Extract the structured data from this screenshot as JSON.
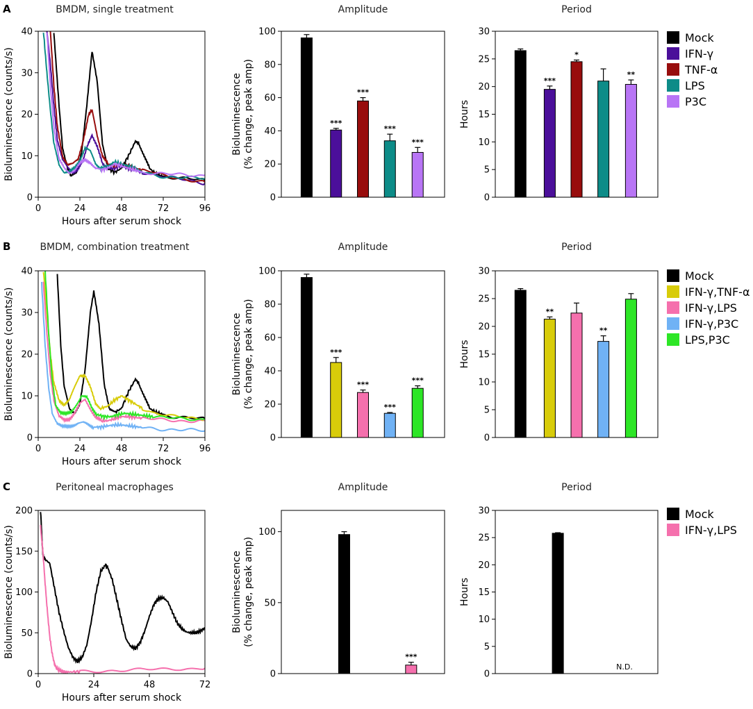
{
  "figure": {
    "row_labels": [
      "A",
      "B",
      "C"
    ],
    "trace_titles": [
      "BMDM, single treatment",
      "BMDM, combination treatment",
      "Peritoneal macrophages"
    ],
    "legends": [
      [
        {
          "label": "Mock",
          "color": "#000000"
        },
        {
          "label": "IFN-γ",
          "color": "#4b0f9a"
        },
        {
          "label": "TNF-α",
          "color": "#980d0d"
        },
        {
          "label": "LPS",
          "color": "#0d8c88"
        },
        {
          "label": "P3C",
          "color": "#b875f5"
        }
      ],
      [
        {
          "label": "Mock",
          "color": "#000000"
        },
        {
          "label": "IFN-γ,TNF-α",
          "color": "#d8cc0a"
        },
        {
          "label": "IFN-γ,LPS",
          "color": "#f570ad"
        },
        {
          "label": "IFN-γ,P3C",
          "color": "#70b2f5"
        },
        {
          "label": "LPS,P3C",
          "color": "#2de626"
        }
      ],
      [
        {
          "label": "Mock",
          "color": "#000000"
        },
        {
          "label": "IFN-γ,LPS",
          "color": "#f570ad"
        }
      ]
    ]
  },
  "chart_data": [
    {
      "id": "A-trace",
      "type": "line",
      "title": "BMDM, single treatment",
      "xlabel": "Hours after serum shock",
      "ylabel": "Bioluminescence (counts/s)",
      "xlim": [
        0,
        96
      ],
      "ylim": [
        0,
        40
      ],
      "xticks": [
        0,
        24,
        48,
        72,
        96
      ],
      "yticks": [
        0,
        10,
        20,
        30,
        40
      ],
      "series": [
        {
          "name": "Mock",
          "color": "#000000",
          "x": [
            9,
            12,
            14,
            17,
            19,
            22,
            25,
            28,
            31,
            34,
            37,
            40,
            44,
            48,
            52,
            56,
            58,
            61,
            64,
            68,
            72,
            78,
            84,
            90,
            96
          ],
          "y": [
            40,
            22,
            12,
            7,
            5,
            6,
            11,
            22,
            35,
            28,
            13,
            7,
            6,
            7,
            10,
            13.5,
            13,
            10,
            7,
            5.5,
            5,
            4.8,
            4.6,
            4.3,
            4
          ]
        },
        {
          "name": "IFN-γ",
          "color": "#4b0f9a",
          "x": [
            5,
            7,
            9,
            11,
            14,
            17,
            20,
            23,
            26,
            29,
            31,
            34,
            37,
            40,
            44,
            48,
            52,
            56,
            60,
            66,
            72,
            78,
            84,
            90,
            96
          ],
          "y": [
            40,
            32,
            22,
            14,
            9,
            7,
            6,
            7,
            9,
            13,
            15,
            12,
            8,
            7,
            7,
            7.5,
            7,
            6.5,
            6,
            5.5,
            5,
            4.6,
            4.2,
            3.8,
            3.4
          ]
        },
        {
          "name": "TNF-α",
          "color": "#980d0d",
          "x": [
            7,
            9,
            11,
            14,
            17,
            20,
            23,
            26,
            29,
            31,
            34,
            37,
            40,
            44,
            48,
            52,
            56,
            60,
            66,
            72,
            78,
            84,
            90,
            96
          ],
          "y": [
            40,
            27,
            17,
            10,
            8,
            8,
            9,
            14,
            20,
            21,
            15,
            10,
            8,
            7.5,
            8,
            7.5,
            7,
            6.5,
            6,
            5.2,
            4.8,
            4.4,
            4,
            3.6
          ]
        },
        {
          "name": "LPS",
          "color": "#0d8c88",
          "x": [
            3,
            5,
            7,
            9,
            12,
            15,
            18,
            21,
            24,
            27,
            30,
            33,
            36,
            40,
            44,
            48,
            52,
            56,
            60,
            66,
            72,
            78,
            84,
            90,
            96
          ],
          "y": [
            40,
            30,
            21,
            13,
            8,
            6,
            6,
            7,
            9,
            12,
            11,
            8,
            7,
            7.5,
            8.5,
            8,
            7.5,
            7,
            6,
            5.5,
            5,
            4.8,
            4.7,
            4.6,
            4.5
          ]
        },
        {
          "name": "P3C",
          "color": "#b875f5",
          "x": [
            5,
            7,
            9,
            12,
            15,
            18,
            21,
            24,
            27,
            30,
            33,
            36,
            40,
            44,
            48,
            52,
            56,
            60,
            66,
            72,
            78,
            84,
            90,
            96
          ],
          "y": [
            40,
            27,
            17,
            9,
            7,
            6,
            6.5,
            8,
            9,
            8.5,
            7,
            6.5,
            7,
            8,
            7.5,
            7,
            6.5,
            6,
            5.8,
            5.6,
            5.5,
            5.4,
            5.3,
            5.3
          ]
        }
      ]
    },
    {
      "id": "A-amp",
      "type": "bar",
      "title": "Amplitude",
      "ylabel": "Bioluminescence (% change, peak amp)",
      "ylim": [
        0,
        100
      ],
      "yticks": [
        0,
        20,
        40,
        60,
        80,
        100
      ],
      "categories": [
        "Mock",
        "IFN-γ",
        "TNF-α",
        "LPS",
        "P3C"
      ],
      "colors": [
        "#000000",
        "#4b0f9a",
        "#980d0d",
        "#0d8c88",
        "#b875f5"
      ],
      "values": [
        96,
        40.5,
        58,
        34,
        27
      ],
      "errors": [
        2,
        1,
        2,
        4,
        3
      ],
      "significance": [
        "",
        "***",
        "***",
        "***",
        "***"
      ]
    },
    {
      "id": "A-per",
      "type": "bar",
      "title": "Period",
      "ylabel": "Hours",
      "ylim": [
        0,
        30
      ],
      "yticks": [
        0,
        5,
        10,
        15,
        20,
        25,
        30
      ],
      "categories": [
        "Mock",
        "IFN-γ",
        "TNF-α",
        "LPS",
        "P3C"
      ],
      "colors": [
        "#000000",
        "#4b0f9a",
        "#980d0d",
        "#0d8c88",
        "#b875f5"
      ],
      "values": [
        26.5,
        19.5,
        24.5,
        21,
        20.4
      ],
      "errors": [
        0.3,
        0.6,
        0.3,
        2.2,
        0.8
      ],
      "significance": [
        "",
        "***",
        "*",
        "",
        "**"
      ]
    },
    {
      "id": "B-trace",
      "type": "line",
      "title": "BMDM, combination treatment",
      "xlabel": "Hours after serum shock",
      "ylabel": "Bioluminescence (counts/s)",
      "xlim": [
        0,
        96
      ],
      "ylim": [
        0,
        40
      ],
      "xticks": [
        0,
        24,
        48,
        72,
        96
      ],
      "yticks": [
        0,
        10,
        20,
        30,
        40
      ],
      "series": [
        {
          "name": "Mock",
          "color": "#000000",
          "x": [
            11,
            13,
            15,
            18,
            21,
            24,
            27,
            30,
            32,
            35,
            38,
            41,
            44,
            48,
            52,
            56,
            58,
            61,
            64,
            68,
            72,
            78,
            84,
            90,
            96
          ],
          "y": [
            39,
            22,
            12,
            7,
            6,
            8,
            16,
            30,
            35,
            27,
            13,
            7,
            6,
            7,
            11,
            14,
            13,
            10,
            7,
            6,
            5.5,
            5,
            4.8,
            4.6,
            4.4
          ]
        },
        {
          "name": "IFN-γ,TNF-α",
          "color": "#d8cc0a",
          "x": [
            3,
            5,
            7,
            9,
            12,
            15,
            18,
            21,
            24,
            27,
            30,
            33,
            36,
            40,
            44,
            48,
            52,
            56,
            60,
            66,
            72,
            78,
            84,
            90,
            96
          ],
          "y": [
            40,
            30,
            20,
            13,
            9,
            8,
            9,
            12,
            15,
            15,
            12,
            8,
            7,
            7.5,
            9,
            10,
            9,
            8,
            7,
            6,
            5.5,
            5,
            4.8,
            4.6,
            4.5
          ]
        },
        {
          "name": "IFN-γ,LPS",
          "color": "#f570ad",
          "x": [
            3,
            5,
            7,
            9,
            12,
            15,
            18,
            21,
            24,
            27,
            30,
            33,
            36,
            40,
            44,
            48,
            52,
            56,
            60,
            66,
            72,
            78,
            84,
            90,
            96
          ],
          "y": [
            37,
            25,
            15,
            9,
            5,
            4,
            4.5,
            6,
            8,
            9,
            7,
            5,
            4,
            4,
            4.5,
            5,
            5,
            4.8,
            4.6,
            4.4,
            4.2,
            4.1,
            4,
            4,
            4
          ]
        },
        {
          "name": "IFN-γ,P3C",
          "color": "#70b2f5",
          "x": [
            2,
            4,
            6,
            8,
            11,
            14,
            17,
            20,
            23,
            26,
            29,
            32,
            36,
            40,
            44,
            48,
            52,
            56,
            60,
            66,
            72,
            78,
            84,
            90,
            96
          ],
          "y": [
            37,
            22,
            12,
            6,
            3.5,
            2.5,
            2.5,
            3,
            3.5,
            3.5,
            3,
            2.5,
            2.5,
            2.8,
            3,
            3,
            2.8,
            2.6,
            2.4,
            2.2,
            2,
            1.9,
            1.8,
            1.7,
            1.6
          ]
        },
        {
          "name": "LPS,P3C",
          "color": "#2de626",
          "x": [
            4,
            6,
            8,
            10,
            13,
            16,
            19,
            22,
            25,
            28,
            31,
            34,
            38,
            42,
            46,
            50,
            54,
            58,
            62,
            66,
            72,
            78,
            84,
            90,
            96
          ],
          "y": [
            40,
            25,
            14,
            8,
            6,
            5.5,
            6,
            8,
            10,
            9.5,
            7,
            5.5,
            5,
            5,
            5.5,
            5.8,
            5.6,
            5.4,
            5.2,
            5,
            4.8,
            4.6,
            4.5,
            4.4,
            4.4
          ]
        }
      ]
    },
    {
      "id": "B-amp",
      "type": "bar",
      "title": "Amplitude",
      "ylabel": "Bioluminescence (% change, peak amp)",
      "ylim": [
        0,
        100
      ],
      "yticks": [
        0,
        20,
        40,
        60,
        80,
        100
      ],
      "categories": [
        "Mock",
        "IFN-γ,TNF-α",
        "IFN-γ,LPS",
        "IFN-γ,P3C",
        "LPS,P3C"
      ],
      "colors": [
        "#000000",
        "#d8cc0a",
        "#f570ad",
        "#70b2f5",
        "#2de626"
      ],
      "values": [
        96,
        45,
        27,
        14.5,
        29.5
      ],
      "errors": [
        2,
        3,
        1.5,
        0.5,
        1.5
      ],
      "significance": [
        "",
        "***",
        "***",
        "***",
        "***"
      ]
    },
    {
      "id": "B-per",
      "type": "bar",
      "title": "Period",
      "ylabel": "Hours",
      "ylim": [
        0,
        30
      ],
      "yticks": [
        0,
        5,
        10,
        15,
        20,
        25,
        30
      ],
      "categories": [
        "Mock",
        "IFN-γ,TNF-α",
        "IFN-γ,LPS",
        "IFN-γ,P3C",
        "LPS,P3C"
      ],
      "colors": [
        "#000000",
        "#d8cc0a",
        "#f570ad",
        "#70b2f5",
        "#2de626"
      ],
      "values": [
        26.5,
        21.3,
        22.4,
        17.3,
        24.9
      ],
      "errors": [
        0.3,
        0.4,
        1.8,
        1.0,
        1.0
      ],
      "significance": [
        "",
        "**",
        "",
        "**",
        ""
      ]
    },
    {
      "id": "C-trace",
      "type": "line",
      "title": "Peritoneal macrophages",
      "xlabel": "Hours after serum shock",
      "ylabel": "Bioluminescence (counts/s)",
      "xlim": [
        0,
        72
      ],
      "ylim": [
        0,
        200
      ],
      "xticks": [
        0,
        24,
        48,
        72
      ],
      "yticks": [
        0,
        50,
        100,
        150,
        200
      ],
      "series": [
        {
          "name": "Mock",
          "color": "#000000",
          "x": [
            1,
            2,
            3,
            5,
            7,
            9,
            11,
            13,
            15,
            17,
            19,
            21,
            23,
            25,
            27,
            29,
            30,
            32,
            34,
            36,
            38,
            40,
            42,
            44,
            46,
            48,
            50,
            52,
            54,
            56,
            58,
            60,
            62,
            64,
            66,
            68,
            70,
            72
          ],
          "y": [
            200,
            145,
            140,
            135,
            105,
            75,
            52,
            32,
            20,
            15,
            20,
            35,
            65,
            100,
            125,
            133,
            130,
            115,
            90,
            65,
            42,
            33,
            31,
            38,
            52,
            70,
            85,
            92,
            93,
            88,
            75,
            62,
            55,
            51,
            50,
            50,
            52,
            56
          ]
        },
        {
          "name": "IFN-γ,LPS",
          "color": "#f570ad",
          "x": [
            1,
            2,
            3,
            4,
            5,
            6,
            7,
            8,
            10,
            12,
            14,
            18,
            24,
            30,
            36,
            42,
            48,
            54,
            60,
            66,
            72
          ],
          "y": [
            180,
            150,
            110,
            75,
            45,
            25,
            12,
            6,
            3,
            2,
            2,
            2.5,
            3,
            3.5,
            4,
            4.5,
            5,
            5.5,
            6,
            6,
            6.5
          ]
        }
      ]
    },
    {
      "id": "C-amp",
      "type": "bar",
      "title": "Amplitude",
      "ylabel": "Bioluminescence (% change, peak amp)",
      "ylim": [
        0,
        115
      ],
      "yticks": [
        0,
        50,
        100
      ],
      "categories": [
        "Mock",
        "IFN-γ,LPS"
      ],
      "colors": [
        "#000000",
        "#f570ad"
      ],
      "values": [
        98,
        6
      ],
      "errors": [
        2,
        2
      ],
      "significance": [
        "",
        "***"
      ]
    },
    {
      "id": "C-per",
      "type": "bar",
      "title": "Period",
      "ylabel": "Hours",
      "ylim": [
        0,
        30
      ],
      "yticks": [
        0,
        5,
        10,
        15,
        20,
        25,
        30
      ],
      "categories": [
        "Mock",
        "IFN-γ,LPS"
      ],
      "colors": [
        "#000000",
        "#f570ad"
      ],
      "values": [
        25.8,
        null
      ],
      "errors": [
        0.1,
        null
      ],
      "significance": [
        "",
        ""
      ],
      "annotations": [
        "",
        "N.D."
      ]
    }
  ]
}
